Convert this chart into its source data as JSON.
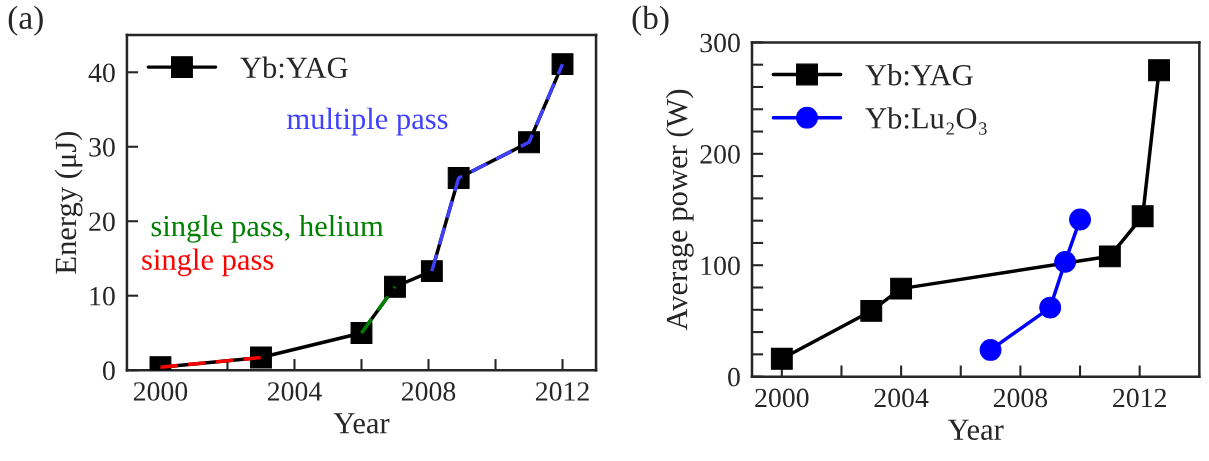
{
  "chart_data": [
    {
      "type": "line",
      "xlabel": "Year",
      "ylabel": "Energy (μJ)",
      "xlim": [
        1999,
        2013
      ],
      "ylim": [
        0,
        45
      ],
      "xticks": [
        2000,
        {
          "value": 2002,
          "label": null
        },
        2004,
        {
          "value": 2006,
          "label": null
        },
        2008,
        {
          "value": 2010,
          "label": null
        },
        2012
      ],
      "yticks": [
        0,
        10,
        20,
        30,
        40
      ],
      "grid": false,
      "legend": "top left",
      "series": [
        {
          "name": "Yb:YAG",
          "color": "#000000",
          "marker": "square",
          "line_style": "solid",
          "x": [
            2000,
            2003,
            2006,
            2007,
            2008.1,
            2008.9,
            2011,
            2012
          ],
          "values": [
            0.4,
            1.7,
            5.0,
            11.2,
            13.3,
            25.8,
            30.6,
            41.1
          ]
        },
        {
          "type": "line",
          "color": "#ff0000",
          "marker": "none",
          "line_style": "dashed",
          "x": [
            2000,
            2003
          ],
          "values": [
            0.4,
            1.7
          ]
        },
        {
          "type": "line",
          "color": "#008000",
          "marker": "none",
          "line_style": "dashed",
          "x": [
            2006,
            2007
          ],
          "values": [
            5.0,
            11.2
          ]
        },
        {
          "type": "line",
          "color": "#4040ff",
          "marker": "none",
          "line_style": "dashed",
          "x": [
            2008.1,
            2008.9,
            2011,
            2012
          ],
          "values": [
            13.3,
            25.8,
            30.6,
            41.1
          ]
        }
      ],
      "annotations": [
        "(a)",
        "single pass",
        "single pass, helium",
        "multiple pass"
      ]
    },
    {
      "type": "line",
      "xlabel": "Year",
      "ylabel": "Average power (W)",
      "xlim": [
        1999,
        2014
      ],
      "ylim": [
        0,
        300
      ],
      "xticks": [
        2000,
        {
          "value": 2002,
          "label": null
        },
        2004,
        {
          "value": 2006,
          "label": null
        },
        2008,
        {
          "value": 2010,
          "label": null
        },
        2012
      ],
      "yticks": [
        0,
        {
          "value": 20,
          "label": null
        },
        {
          "value": 40,
          "label": null
        },
        {
          "value": 60,
          "label": null
        },
        {
          "value": 80,
          "label": null
        },
        100,
        {
          "value": 120,
          "label": null
        },
        {
          "value": 140,
          "label": null
        },
        {
          "value": 160,
          "label": null
        },
        {
          "value": 180,
          "label": null
        },
        200,
        {
          "value": 220,
          "label": null
        },
        {
          "value": 240,
          "label": null
        },
        {
          "value": 260,
          "label": null
        },
        {
          "value": 280,
          "label": null
        },
        300
      ],
      "grid": false,
      "legend": "top left",
      "series": [
        {
          "name": "Yb:YAG",
          "color": "#000000",
          "marker": "square",
          "line_style": "solid",
          "x": [
            2000,
            2003,
            2004,
            2011,
            2012.1,
            2012.65
          ],
          "values": [
            16,
            59,
            79,
            108,
            144,
            275
          ]
        },
        {
          "name": "Yb:Lu₂O₃",
          "color": "#0000ff",
          "marker": "circle",
          "line_style": "solid",
          "x": [
            2007,
            2009,
            2009.5,
            2010
          ],
          "values": [
            24,
            62,
            103,
            141
          ]
        }
      ],
      "annotations": [
        "(b)"
      ]
    }
  ]
}
